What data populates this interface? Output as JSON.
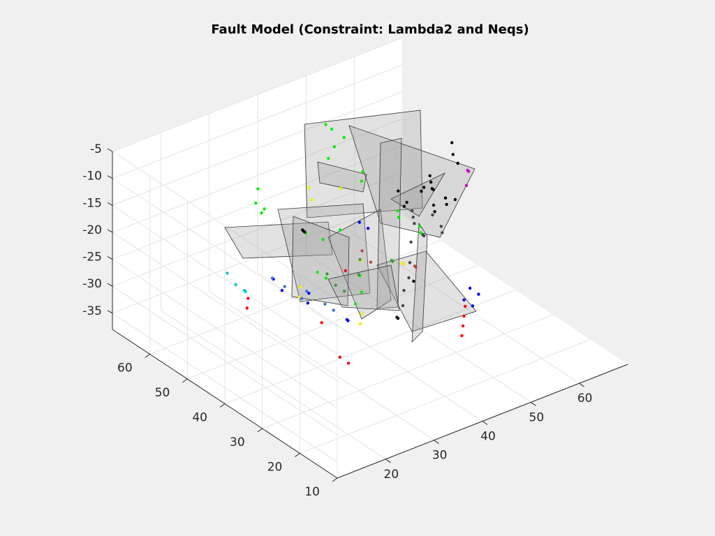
{
  "chart_data": {
    "type": "scatter",
    "title": "Fault Model (Constraint: Lambda2 and Neqs)",
    "view": "3d",
    "grid": true,
    "xlim": [
      10,
      70
    ],
    "ylim": [
      10,
      70
    ],
    "zlim": [
      -38,
      -5
    ],
    "x_ticks": [
      "20",
      "30",
      "40",
      "50",
      "60"
    ],
    "y_ticks": [
      "10",
      "20",
      "30",
      "40",
      "50",
      "60"
    ],
    "z_ticks": [
      "-5",
      "-10",
      "-15",
      "-20",
      "-25",
      "-30",
      "-35"
    ],
    "series": [
      {
        "color": "#00ee00",
        "points": [
          [
            44,
            57,
            -6
          ],
          [
            46,
            58,
            -8
          ],
          [
            47,
            56,
            -9
          ],
          [
            45,
            56,
            -10
          ],
          [
            43,
            55,
            -11
          ],
          [
            30,
            57,
            -13
          ],
          [
            28,
            55,
            -14
          ],
          [
            29,
            54,
            -15
          ],
          [
            30,
            56,
            -17
          ],
          [
            36,
            52,
            -21
          ],
          [
            38,
            50,
            -22
          ],
          [
            40,
            48,
            -20
          ],
          [
            48,
            43,
            -17
          ],
          [
            49,
            44,
            -19
          ],
          [
            51,
            41,
            -20
          ],
          [
            52,
            42,
            -22
          ],
          [
            37,
            40,
            -29
          ],
          [
            39,
            41,
            -28
          ],
          [
            41,
            44,
            -27
          ],
          [
            33,
            45,
            -24
          ],
          [
            34,
            44,
            -25
          ],
          [
            46,
            50,
            -14
          ],
          [
            47,
            51,
            -13
          ]
        ]
      },
      {
        "color": "#000000",
        "points": [
          [
            60,
            44,
            -9
          ],
          [
            61,
            45,
            -12
          ],
          [
            62,
            45,
            -14
          ],
          [
            57,
            46,
            -15
          ],
          [
            58,
            47,
            -17
          ],
          [
            59,
            48,
            -19
          ],
          [
            60,
            49,
            -20
          ],
          [
            61,
            47,
            -21
          ],
          [
            62,
            48,
            -23
          ],
          [
            63,
            47,
            -22
          ],
          [
            55,
            45,
            -16
          ],
          [
            56,
            47,
            -18
          ],
          [
            57,
            45,
            -20
          ],
          [
            58,
            46,
            -22
          ],
          [
            52,
            48,
            -17
          ],
          [
            53,
            47,
            -19
          ],
          [
            54,
            49,
            -21
          ],
          [
            33,
            49,
            -18
          ],
          [
            34,
            50,
            -19
          ],
          [
            35,
            51,
            -20
          ],
          [
            44,
            38,
            -33
          ],
          [
            45,
            39,
            -34
          ],
          [
            49,
            40,
            -29
          ]
        ]
      },
      {
        "color": "#444444",
        "points": [
          [
            51,
            43,
            -18
          ],
          [
            52,
            44,
            -20
          ],
          [
            53,
            45,
            -22
          ],
          [
            54,
            44,
            -24
          ],
          [
            55,
            45,
            -25
          ],
          [
            50,
            42,
            -23
          ],
          [
            49,
            41,
            -26
          ],
          [
            48,
            40,
            -28
          ],
          [
            56,
            44,
            -21
          ],
          [
            57,
            43,
            -23
          ],
          [
            58,
            44,
            -25
          ],
          [
            47,
            40,
            -30
          ],
          [
            46,
            39,
            -32
          ]
        ]
      },
      {
        "color": "#eeee00",
        "points": [
          [
            39,
            55,
            -15
          ],
          [
            38,
            53,
            -16
          ],
          [
            44,
            53,
            -16
          ],
          [
            30,
            46,
            -28
          ],
          [
            31,
            47,
            -27
          ],
          [
            38,
            40,
            -33
          ],
          [
            39,
            41,
            -32
          ],
          [
            49,
            43,
            -27
          ],
          [
            50,
            44,
            -28
          ],
          [
            42,
            45,
            -25
          ]
        ]
      },
      {
        "color": "#ff0000",
        "points": [
          [
            20,
            47,
            -27
          ],
          [
            21,
            48,
            -26
          ],
          [
            30,
            40,
            -30
          ],
          [
            38,
            44,
            -25
          ],
          [
            54,
            33,
            -34
          ],
          [
            55,
            34,
            -33
          ],
          [
            53,
            32,
            -35
          ],
          [
            52,
            31,
            -36
          ],
          [
            33,
            39,
            -37
          ],
          [
            34,
            38,
            -38
          ]
        ]
      },
      {
        "color": "#0000ee",
        "points": [
          [
            27,
            49,
            -25
          ],
          [
            28,
            48,
            -27
          ],
          [
            31,
            45,
            -29
          ],
          [
            32,
            46,
            -28
          ],
          [
            36,
            41,
            -32
          ],
          [
            37,
            42,
            -33
          ],
          [
            44,
            48,
            -20
          ],
          [
            45,
            47,
            -21
          ],
          [
            54,
            33,
            -31
          ],
          [
            55,
            32,
            -32
          ],
          [
            56,
            34,
            -30
          ],
          [
            57,
            33,
            -31
          ]
        ]
      },
      {
        "color": "#3b6ee8",
        "points": [
          [
            26,
            48,
            -24
          ],
          [
            27,
            46,
            -25
          ],
          [
            29,
            44,
            -27
          ],
          [
            30,
            44,
            -26
          ],
          [
            33,
            43,
            -29
          ],
          [
            34,
            42,
            -30
          ]
        ]
      },
      {
        "color": "#00cccc",
        "points": [
          [
            19,
            51,
            -22
          ],
          [
            20,
            50,
            -24
          ],
          [
            21,
            49,
            -25
          ],
          [
            22,
            50,
            -26
          ]
        ]
      },
      {
        "color": "#cc00cc",
        "points": [
          [
            64,
            45,
            -16
          ],
          [
            65,
            46,
            -17
          ],
          [
            63,
            44,
            -18
          ]
        ]
      },
      {
        "color": "#3a9a3a",
        "points": [
          [
            35,
            45,
            -25
          ],
          [
            36,
            44,
            -27
          ],
          [
            37,
            43,
            -28
          ],
          [
            40,
            43,
            -26
          ],
          [
            41,
            44,
            -24
          ],
          [
            46,
            42,
            -25
          ],
          [
            47,
            43,
            -26
          ]
        ]
      },
      {
        "color": "#b84444",
        "points": [
          [
            43,
            46,
            -24
          ],
          [
            44,
            45,
            -26
          ],
          [
            50,
            41,
            -27
          ],
          [
            51,
            42,
            -28
          ]
        ]
      }
    ]
  }
}
